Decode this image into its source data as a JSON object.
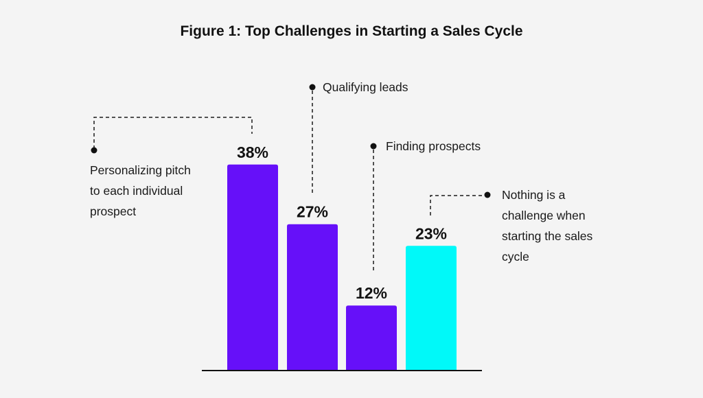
{
  "chart_data": {
    "type": "bar",
    "title": "Figure 1: Top Challenges in Starting a Sales Cycle",
    "xlabel": "",
    "ylabel": "",
    "ylim": [
      0,
      40
    ],
    "grid": false,
    "categories": [
      "Personalizing pitch to each individual prospect",
      "Qualifying leads",
      "Finding prospects",
      "Nothing is a challenge when starting the sales cycle"
    ],
    "values": [
      38,
      27,
      12,
      23
    ],
    "value_labels": [
      "38%",
      "27%",
      "12%",
      "23%"
    ],
    "callout_lines": [
      [
        "Personalizing pitch",
        "to each individual",
        "prospect"
      ],
      [
        "Qualifying leads"
      ],
      [
        "Finding prospects"
      ],
      [
        "Nothing is a",
        "challenge when",
        "starting the sales",
        "cycle"
      ]
    ],
    "colors": [
      "#6610f9",
      "#6610f9",
      "#6610f9",
      "#00f9f9"
    ]
  }
}
